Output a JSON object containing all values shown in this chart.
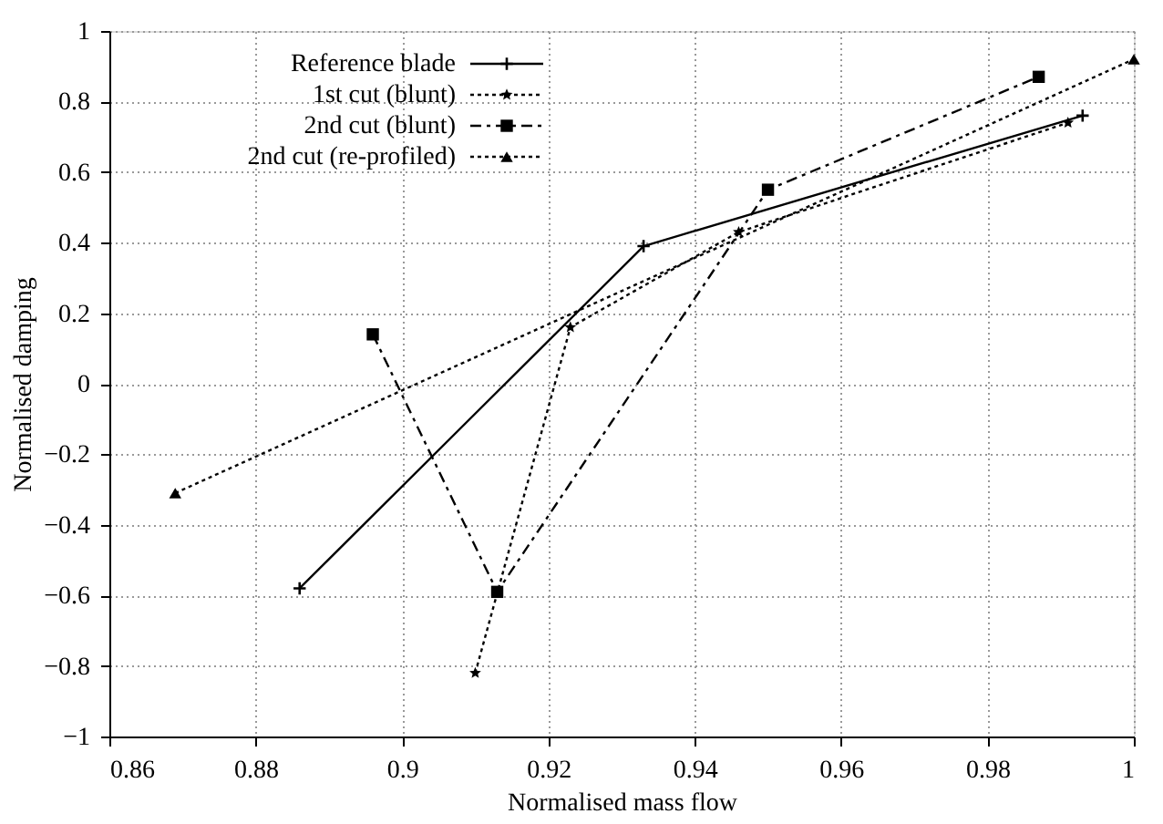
{
  "chart_data": {
    "type": "line",
    "xlabel": "Normalised mass flow",
    "ylabel": "Normalised damping",
    "xlim": [
      0.86,
      1
    ],
    "xticks": [
      0.86,
      0.88,
      0.9,
      0.92,
      0.94,
      0.96,
      0.98,
      1
    ],
    "ylim": [
      -1,
      1
    ],
    "yticks": [
      -1,
      -0.8,
      -0.6,
      -0.4,
      -0.2,
      0,
      0.2,
      0.4,
      0.6,
      0.8,
      1
    ],
    "grid": true,
    "legend": "top left",
    "series": [
      {
        "name": "Reference blade",
        "color": "#000000",
        "marker": "cross",
        "line_style": "solid",
        "x": [
          0.886,
          0.933,
          0.993
        ],
        "values": [
          -0.58,
          0.39,
          0.76
        ]
      },
      {
        "name": "1st cut (blunt)",
        "color": "#000000",
        "marker": "star",
        "line_style": "dotted",
        "x": [
          0.91,
          0.923,
          0.946,
          0.991
        ],
        "values": [
          -0.82,
          0.16,
          0.43,
          0.74
        ]
      },
      {
        "name": "2nd cut (blunt)",
        "color": "#000000",
        "marker": "square",
        "line_style": "dashed",
        "x": [
          0.896,
          0.913,
          0.95,
          0.987
        ],
        "values": [
          0.14,
          -0.59,
          0.55,
          0.87
        ]
      },
      {
        "name": "2nd cut (re-profiled)",
        "color": "#000000",
        "marker": "triangle",
        "line_style": "dotted",
        "x": [
          0.869,
          1.0
        ],
        "values": [
          -0.31,
          0.92
        ]
      }
    ]
  }
}
